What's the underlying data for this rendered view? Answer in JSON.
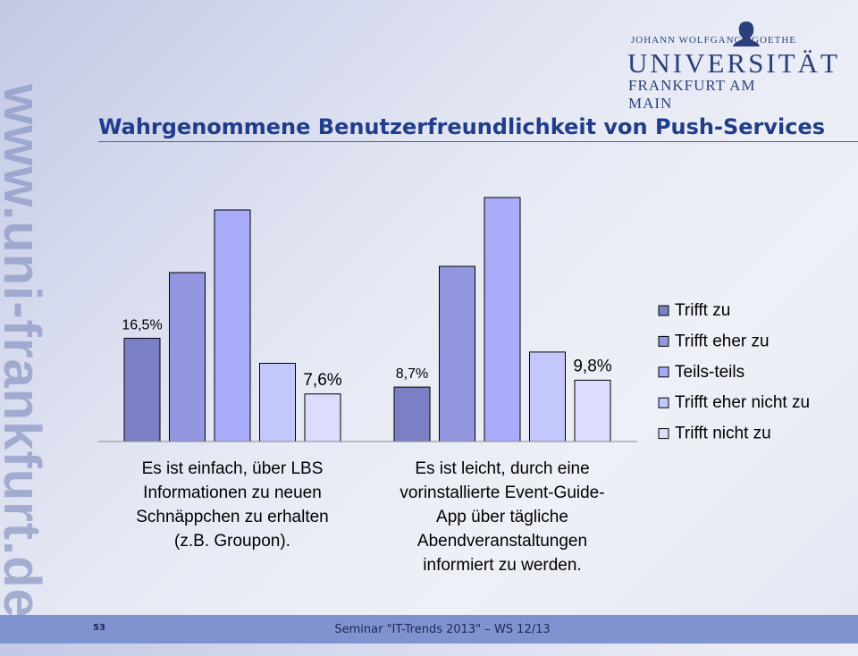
{
  "side_url": "www.uni-frankfurt.de",
  "logo": {
    "line1a": "JOHANN WOLFGANG",
    "line1b": "GOETHE",
    "line2": "UNIVERSITÄT",
    "line3": "FRANKFURT AM MAIN"
  },
  "title": "Wahrgenommene Benutzerfreundlichkeit von Push-Services",
  "footer": {
    "page": "53",
    "text": "Seminar \"IT-Trends 2013\" – WS 12/13"
  },
  "colors": {
    "title": "#1f3d8a",
    "footer_band": "#7f93d1"
  },
  "chart_data": {
    "type": "bar",
    "categories": [
      [
        "Es ist einfach, über LBS",
        "Informationen zu neuen",
        "Schnäppchen zu erhalten",
        "(z.B. Groupon)."
      ],
      [
        "Es ist leicht, durch eine",
        "vorinstallierte Event-Guide-",
        "App über tägliche",
        "Abendveranstaltungen",
        "informiert zu werden."
      ]
    ],
    "series": [
      {
        "name": "Trifft zu",
        "color": "#7b7fc4",
        "values": [
          16.5,
          8.7
        ]
      },
      {
        "name": "Trifft eher zu",
        "color": "#9397e0",
        "values": [
          27,
          28
        ]
      },
      {
        "name": "Teils-teils",
        "color": "#a8acfb",
        "values": [
          37,
          39
        ]
      },
      {
        "name": "Trifft eher nicht zu",
        "color": "#c4c7fb",
        "values": [
          12.5,
          14.3
        ]
      },
      {
        "name": "Trifft nicht zu",
        "color": "#dcdcfd",
        "values": [
          7.6,
          9.8
        ]
      }
    ],
    "data_labels": [
      {
        "series": 0,
        "category": 0,
        "text": "16,5%"
      },
      {
        "series": 4,
        "category": 0,
        "text": "7,6%"
      },
      {
        "series": 0,
        "category": 1,
        "text": "8,7%"
      },
      {
        "series": 4,
        "category": 1,
        "text": "9,8%"
      }
    ],
    "ylim": [
      0,
      40
    ],
    "grid": false,
    "legend": "right"
  }
}
